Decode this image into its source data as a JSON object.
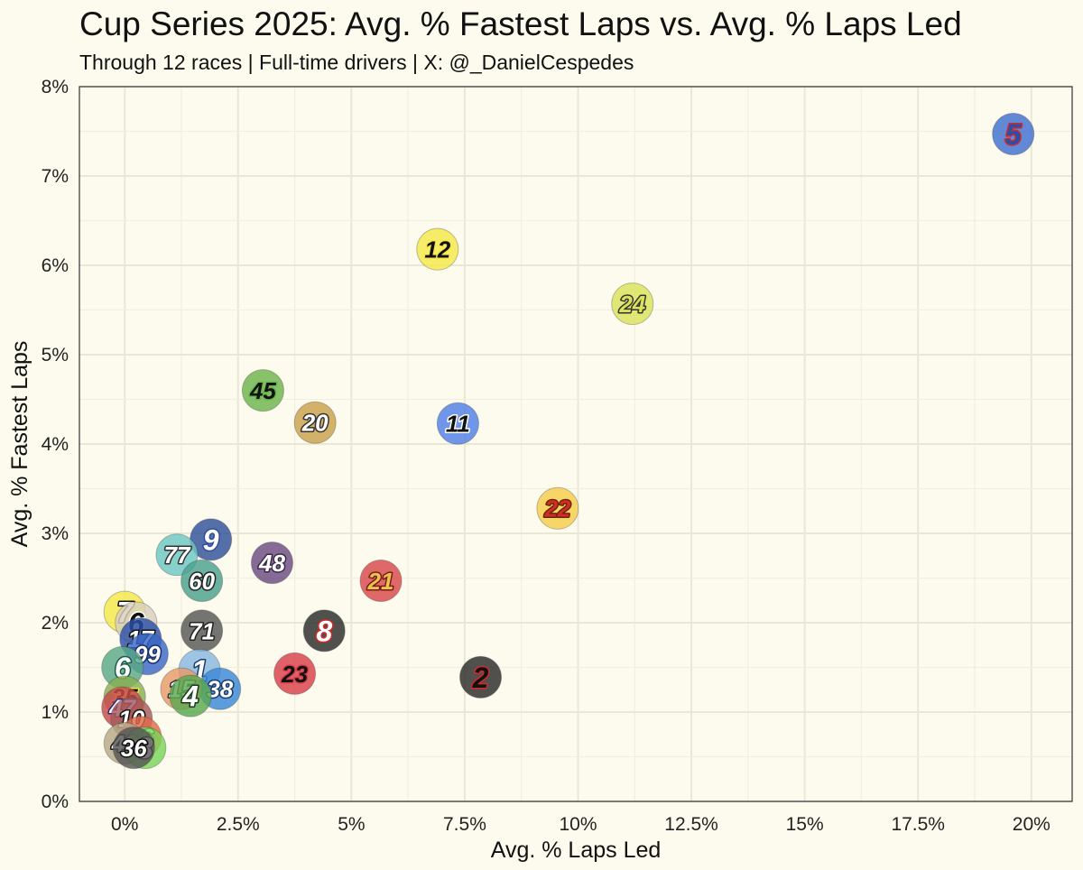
{
  "header": {
    "title": "Cup Series 2025: Avg. % Fastest Laps vs. Avg. % Laps Led",
    "subtitle": "Through 12 races | Full-time drivers | X: @_DanielCespedes"
  },
  "chart_data": {
    "type": "scatter",
    "title": "Cup Series 2025: Avg. % Fastest Laps vs. Avg. % Laps Led",
    "subtitle": "Through 12 races | Full-time drivers | X: @_DanielCespedes",
    "xlabel": "Avg. % Laps Led",
    "ylabel": "Avg. % Fastest Laps",
    "xlim": [
      -1,
      20.9
    ],
    "ylim": [
      0,
      8
    ],
    "x_ticks": [
      0,
      2.5,
      5,
      7.5,
      10,
      12.5,
      15,
      17.5,
      20
    ],
    "x_tick_labels": [
      "0%",
      "2.5%",
      "5%",
      "7.5%",
      "10%",
      "12.5%",
      "15%",
      "17.5%",
      "20%"
    ],
    "y_ticks": [
      0,
      1,
      2,
      3,
      4,
      5,
      6,
      7,
      8
    ],
    "y_tick_labels": [
      "0%",
      "1%",
      "2%",
      "3%",
      "4%",
      "5%",
      "6%",
      "7%",
      "8%"
    ],
    "grid": true,
    "points": [
      {
        "label": "5",
        "x": 19.6,
        "y": 7.47,
        "color": "#3e6fd0",
        "text_color": "#2b4fa8",
        "stroke": "#d22a2a"
      },
      {
        "label": "12",
        "x": 6.9,
        "y": 6.18,
        "color": "#f5e84a",
        "text_color": "#111111",
        "stroke": "#f5e84a"
      },
      {
        "label": "24",
        "x": 11.2,
        "y": 5.57,
        "color": "#d9e25a",
        "text_color": "#d9e25a",
        "stroke": "#333333"
      },
      {
        "label": "45",
        "x": 3.05,
        "y": 4.6,
        "color": "#6db54e",
        "text_color": "#111111",
        "stroke": "#6db54e"
      },
      {
        "label": "20",
        "x": 4.2,
        "y": 4.24,
        "color": "#c9a04a",
        "text_color": "#ffffff",
        "stroke": "#333333"
      },
      {
        "label": "11",
        "x": 7.35,
        "y": 4.23,
        "color": "#4f7fe8",
        "text_color": "#111111",
        "stroke": "#ffffff"
      },
      {
        "label": "22",
        "x": 9.55,
        "y": 3.28,
        "color": "#f6cc4a",
        "text_color": "#d22a2a",
        "stroke": "#6a2a00"
      },
      {
        "label": "9",
        "x": 1.9,
        "y": 2.93,
        "color": "#2f4f9a",
        "text_color": "#ffffff",
        "stroke": "#2f4f9a"
      },
      {
        "label": "77",
        "x": 1.15,
        "y": 2.76,
        "color": "#6cc7c4",
        "text_color": "#ffffff",
        "stroke": "#333333"
      },
      {
        "label": "48",
        "x": 3.25,
        "y": 2.67,
        "color": "#6a4a82",
        "text_color": "#ffffff",
        "stroke": "#3a2a4a"
      },
      {
        "label": "60",
        "x": 1.7,
        "y": 2.47,
        "color": "#4aa08e",
        "text_color": "#ffffff",
        "stroke": "#222222"
      },
      {
        "label": "21",
        "x": 5.65,
        "y": 2.47,
        "color": "#d8484a",
        "text_color": "#e8c64a",
        "stroke": "#7a1a1a"
      },
      {
        "label": "7",
        "x": 0.0,
        "y": 2.12,
        "color": "#f5e84a",
        "text_color": "#ffffff",
        "stroke": "#111111"
      },
      {
        "label": "6",
        "x": 0.25,
        "y": 2.0,
        "color": "#d8d0c0",
        "text_color": "#111111",
        "stroke": "#ffffff"
      },
      {
        "label": "71",
        "x": 1.7,
        "y": 1.91,
        "color": "#555555",
        "text_color": "#ffffff",
        "stroke": "#222222"
      },
      {
        "label": "8",
        "x": 4.4,
        "y": 1.91,
        "color": "#2a2a2a",
        "text_color": "#ffffff",
        "stroke": "#d22a2a"
      },
      {
        "label": "17",
        "x": 0.35,
        "y": 1.82,
        "color": "#2a4fa8",
        "text_color": "#ffffff",
        "stroke": "#111111"
      },
      {
        "label": "99",
        "x": 0.5,
        "y": 1.65,
        "color": "#3a68c8",
        "text_color": "#ffffff",
        "stroke": "#1a2f6a"
      },
      {
        "label": "6",
        "x": -0.05,
        "y": 1.5,
        "color": "#5aa888",
        "text_color": "#ffffff",
        "stroke": "#1a5a4a"
      },
      {
        "label": "1",
        "x": 1.65,
        "y": 1.47,
        "color": "#88b8e0",
        "text_color": "#ffffff",
        "stroke": "#1a3a6a"
      },
      {
        "label": "23",
        "x": 3.75,
        "y": 1.43,
        "color": "#d8404a",
        "text_color": "#111111",
        "stroke": "#d8404a"
      },
      {
        "label": "2",
        "x": 7.85,
        "y": 1.39,
        "color": "#2a2a2a",
        "text_color": "#111111",
        "stroke": "#d22a2a"
      },
      {
        "label": "38",
        "x": 2.1,
        "y": 1.26,
        "color": "#3a88d8",
        "text_color": "#ffffff",
        "stroke": "#1a3a6a"
      },
      {
        "label": "15",
        "x": 1.25,
        "y": 1.26,
        "color": "#e89a6a",
        "text_color": "#ffffff",
        "stroke": "#333333"
      },
      {
        "label": "4",
        "x": 1.45,
        "y": 1.18,
        "color": "#5aa850",
        "text_color": "#ffffff",
        "stroke": "#1a3a1a"
      },
      {
        "label": "35",
        "x": 0.0,
        "y": 1.17,
        "color": "#88b050",
        "text_color": "#111111",
        "stroke": "#f5e84a"
      },
      {
        "label": "47",
        "x": -0.05,
        "y": 1.05,
        "color": "#c84a4a",
        "text_color": "#ffffff",
        "stroke": "#2a2a8a"
      },
      {
        "label": "10",
        "x": 0.15,
        "y": 0.93,
        "color": "#a85a5a",
        "text_color": "#ffffff",
        "stroke": "#111111"
      },
      {
        "label": "16",
        "x": 0.35,
        "y": 0.72,
        "color": "#e06a4a",
        "text_color": "#ffffff",
        "stroke": "#111111"
      },
      {
        "label": "43",
        "x": 0.0,
        "y": 0.65,
        "color": "#b8a888",
        "text_color": "#ffffff",
        "stroke": "#111111"
      },
      {
        "label": "3",
        "x": 0.45,
        "y": 0.6,
        "color": "#7ad45a",
        "text_color": "#ffffff",
        "stroke": "#111111"
      },
      {
        "label": "36",
        "x": 0.2,
        "y": 0.6,
        "color": "#555555",
        "text_color": "#ffffff",
        "stroke": "#111111"
      }
    ]
  }
}
